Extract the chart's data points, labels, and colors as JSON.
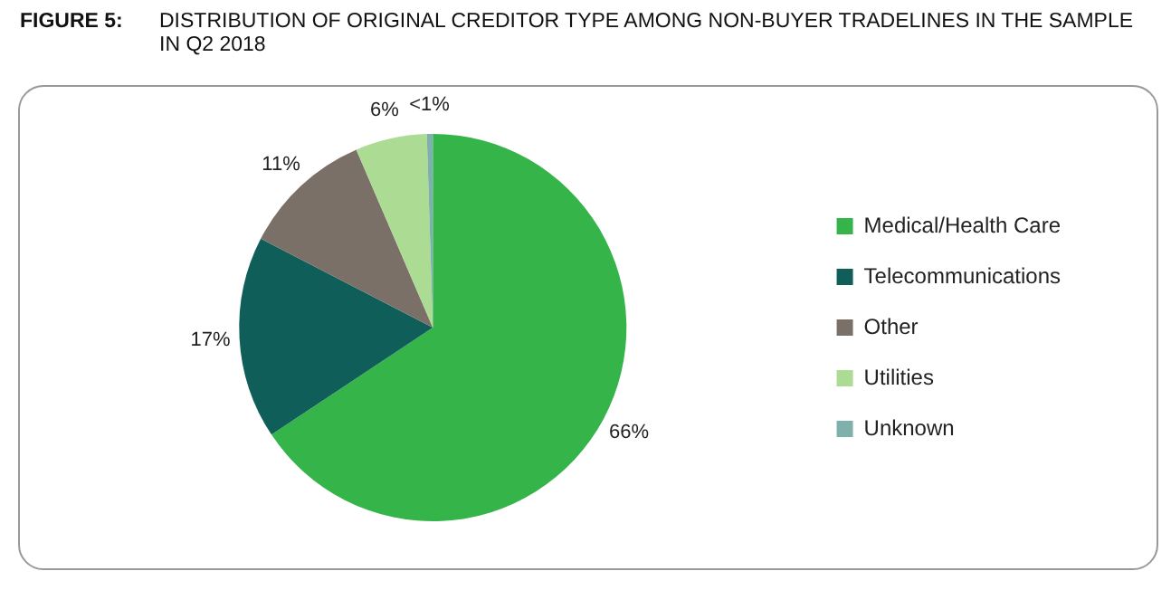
{
  "chart_data": {
    "type": "pie",
    "title": "DISTRIBUTION OF ORIGINAL CREDITOR TYPE AMONG NON-BUYER TRADELINES IN THE SAMPLE IN Q2 2018",
    "annotations": [
      "FIGURE 5:"
    ],
    "categories": [
      "Medical/Health Care",
      "Telecommunications",
      "Other",
      "Utilities",
      "Unknown"
    ],
    "values": [
      66,
      17,
      11,
      6,
      0.5
    ],
    "value_labels": [
      "66%",
      "17%",
      "11%",
      "6%",
      "<1%"
    ],
    "colors": [
      "#35b44a",
      "#0f5e5a",
      "#7b7067",
      "#acdc94",
      "#7fb1ac"
    ],
    "legend": "right"
  }
}
